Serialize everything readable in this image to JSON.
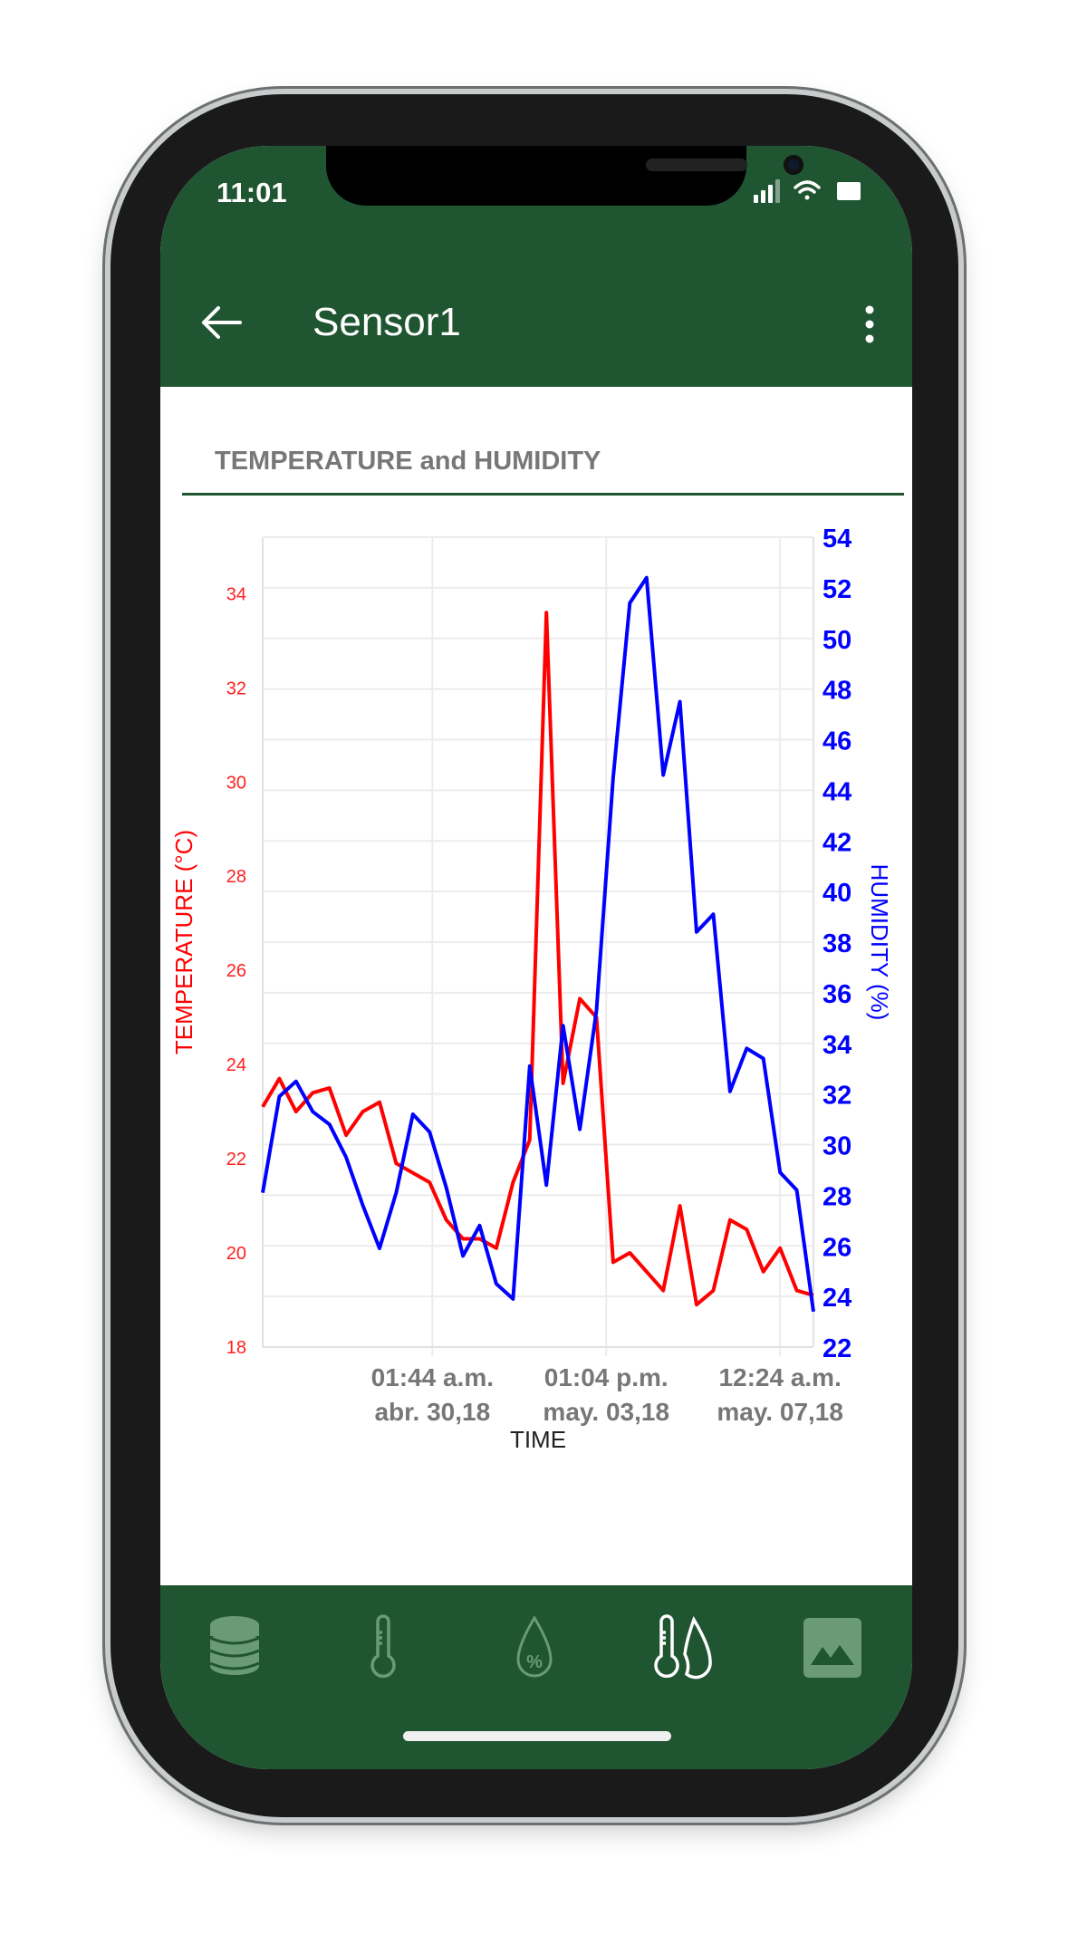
{
  "status_bar": {
    "time": "11:01",
    "icons": [
      "cellular-signal-icon",
      "wifi-icon",
      "battery-icon"
    ]
  },
  "app_bar": {
    "title": "Sensor1",
    "back_icon": "arrow-left-icon",
    "menu_icon": "more-vertical-icon"
  },
  "section": {
    "title": "TEMPERATURE and HUMIDITY"
  },
  "colors": {
    "brand": "#205531",
    "temperature": "#ff0000",
    "humidity": "#0000ff"
  },
  "bottom_nav": {
    "items": [
      {
        "icon": "database-icon",
        "active": false
      },
      {
        "icon": "thermometer-icon",
        "active": false
      },
      {
        "icon": "humidity-drop-icon",
        "active": false
      },
      {
        "icon": "thermometer-drop-icon",
        "active": true
      },
      {
        "icon": "image-icon",
        "active": false
      }
    ]
  },
  "chart_data": {
    "type": "line",
    "xlabel": "TIME",
    "ylabel": "TEMPERATURE (°C)",
    "y2label": "HUMIDITY (%)",
    "x_ticks": [
      {
        "value": "2018-04-30T01:44",
        "line1": "01:44 a.m.",
        "line2": "abr. 30,18"
      },
      {
        "value": "2018-05-03T13:04",
        "line1": "01:04 p.m.",
        "line2": "may. 03,18"
      },
      {
        "value": "2018-05-07T00:24",
        "line1": "12:24 a.m.",
        "line2": "may. 07,18"
      }
    ],
    "xlim": [
      "2018-04-26T16:24",
      "2018-05-07T16:24"
    ],
    "ylim": [
      18,
      35.2
    ],
    "y_ticks": [
      "18",
      "20",
      "22",
      "24",
      "26",
      "28",
      "30",
      "32",
      "34"
    ],
    "y2lim": [
      22,
      54
    ],
    "y2_ticks": [
      "22",
      "24",
      "26",
      "28",
      "30",
      "32",
      "34",
      "36",
      "38",
      "40",
      "42",
      "44",
      "46",
      "48",
      "50",
      "52",
      "54"
    ],
    "grid": true,
    "x": [
      "2018-04-26T16:24",
      "2018-04-27T00:24",
      "2018-04-27T08:24",
      "2018-04-27T16:24",
      "2018-04-28T00:24",
      "2018-04-28T08:24",
      "2018-04-28T16:24",
      "2018-04-29T00:24",
      "2018-04-29T08:24",
      "2018-04-29T16:24",
      "2018-04-30T00:24",
      "2018-04-30T08:24",
      "2018-04-30T16:24",
      "2018-05-01T00:24",
      "2018-05-01T08:24",
      "2018-05-01T16:24",
      "2018-05-02T00:24",
      "2018-05-02T08:24",
      "2018-05-02T16:24",
      "2018-05-03T00:24",
      "2018-05-03T08:24",
      "2018-05-03T16:24",
      "2018-05-04T00:24",
      "2018-05-04T08:24",
      "2018-05-04T16:24",
      "2018-05-05T00:24",
      "2018-05-05T08:24",
      "2018-05-05T16:24",
      "2018-05-06T00:24",
      "2018-05-06T08:24",
      "2018-05-06T16:24",
      "2018-05-07T00:24",
      "2018-05-07T08:24",
      "2018-05-07T16:24"
    ],
    "series": [
      {
        "axis": "left",
        "color": "#ff0000",
        "values": [
          23.1,
          23.7,
          23.0,
          23.4,
          23.5,
          22.5,
          23.0,
          23.2,
          21.9,
          21.7,
          21.5,
          20.7,
          20.3,
          20.3,
          20.1,
          21.5,
          22.4,
          33.6,
          23.6,
          25.4,
          25.0,
          19.8,
          20.0,
          19.6,
          19.2,
          21.0,
          18.9,
          19.2,
          20.7,
          20.5,
          19.6,
          20.1,
          19.2,
          19.1
        ]
      },
      {
        "axis": "right",
        "color": "#0000ff",
        "values": [
          28.1,
          31.9,
          32.5,
          31.3,
          30.8,
          29.5,
          27.6,
          25.9,
          28.1,
          31.2,
          30.5,
          28.3,
          25.6,
          26.8,
          24.5,
          23.9,
          33.1,
          28.4,
          34.7,
          30.6,
          35.3,
          44.5,
          51.4,
          52.4,
          44.6,
          47.5,
          38.4,
          39.1,
          32.1,
          33.8,
          33.4,
          28.9,
          28.2,
          23.4
        ]
      }
    ]
  }
}
